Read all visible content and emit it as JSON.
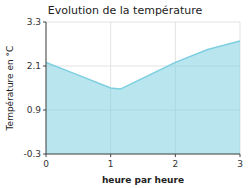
{
  "chart_data": {
    "type": "area",
    "title": "Evolution de la température",
    "x_label": "heure par heure",
    "y_label": "Température en °C",
    "x": [
      0,
      0.5,
      1.0,
      1.15,
      2.0,
      2.5,
      3.0
    ],
    "values": [
      2.2,
      1.85,
      1.5,
      1.47,
      2.2,
      2.55,
      2.78
    ],
    "color": "#7dcfe0",
    "xlim": [
      0,
      3
    ],
    "ylim": [
      -0.3,
      3.3
    ],
    "xticks": [
      0,
      1,
      2,
      3
    ],
    "yticks": [
      -0.3,
      0.9,
      2.1,
      3.3
    ],
    "grid": true
  }
}
